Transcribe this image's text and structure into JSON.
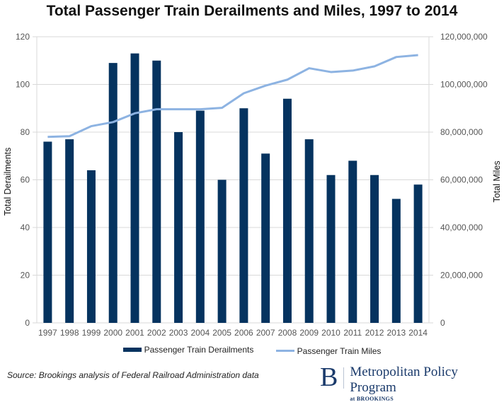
{
  "chart_data": {
    "type": "bar",
    "title": "Total Passenger Train Derailments and Miles, 1997 to 2014",
    "categories": [
      "1997",
      "1998",
      "1999",
      "2000",
      "2001",
      "2002",
      "2003",
      "2004",
      "2005",
      "2006",
      "2007",
      "2008",
      "2009",
      "2010",
      "2011",
      "2012",
      "2013",
      "2014"
    ],
    "series": [
      {
        "name": "Passenger Train Derailments",
        "type": "bar",
        "axis": "left",
        "color": "#05335f",
        "values": [
          76,
          77,
          64,
          109,
          113,
          110,
          80,
          89,
          60,
          90,
          71,
          94,
          77,
          62,
          68,
          62,
          52,
          58
        ]
      },
      {
        "name": "Passenger Train Miles",
        "type": "line",
        "axis": "right",
        "color": "#8db3e2",
        "values": [
          78000000,
          78300000,
          82500000,
          84200000,
          87900000,
          89600000,
          89600000,
          89600000,
          90200000,
          96300000,
          99500000,
          102000000,
          106800000,
          105200000,
          105800000,
          107600000,
          111500000,
          112300000
        ]
      }
    ],
    "xlabel": "",
    "ylabel": "Total Derailments",
    "y2label": "Total Miles",
    "ylim": [
      0,
      120
    ],
    "y2lim": [
      0,
      120000000
    ],
    "yticks": [
      "0",
      "20",
      "40",
      "60",
      "80",
      "100",
      "120"
    ],
    "y2ticks": [
      "0",
      "20,000,000",
      "40,000,000",
      "60,000,000",
      "80,000,000",
      "100,000,000",
      "120,000,000"
    ],
    "grid": true,
    "legend_position": "bottom"
  },
  "legend": {
    "bar_label": "Passenger Train Derailments",
    "line_label": "Passenger Train Miles"
  },
  "source": "Source: Brookings analysis of Federal Railroad Administration data",
  "logo": {
    "letter": "B",
    "name": "Metropolitan Policy Program",
    "sub": "at BROOKINGS"
  }
}
